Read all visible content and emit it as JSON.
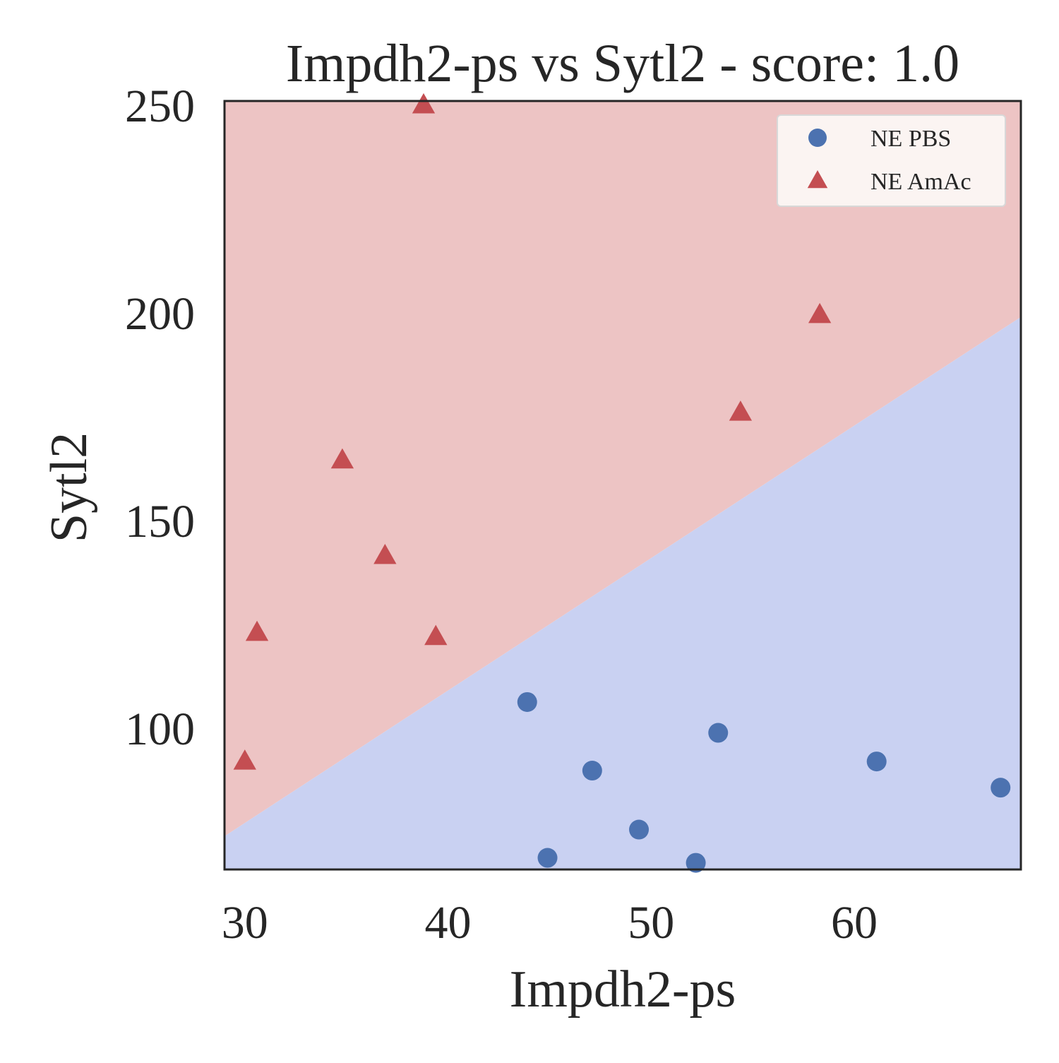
{
  "chart_data": {
    "type": "scatter",
    "title": "Impdh2-ps vs Sytl2 - score: 1.0",
    "xlabel": "Impdh2-ps",
    "ylabel": "Sytl2",
    "xlim": [
      29,
      68.2
    ],
    "ylim": [
      66,
      251
    ],
    "xticks": [
      30,
      40,
      50,
      60
    ],
    "yticks": [
      100,
      150,
      200,
      250
    ],
    "grid": false,
    "legend_position": "top-right",
    "decision_boundary": {
      "line": [
        [
          29,
          74
        ],
        [
          68.2,
          199
        ]
      ],
      "region_above_color": "#edc4c4",
      "region_below_color": "#c9d1f2",
      "above_series": "NE AmAc",
      "below_series": "NE PBS"
    },
    "series": [
      {
        "name": "NE PBS",
        "marker": "circle",
        "color": "#4c72b0",
        "points": [
          {
            "x": 43.9,
            "y": 106.3
          },
          {
            "x": 47.1,
            "y": 89.8
          },
          {
            "x": 44.9,
            "y": 68.8
          },
          {
            "x": 49.4,
            "y": 75.6
          },
          {
            "x": 52.2,
            "y": 67.6
          },
          {
            "x": 53.3,
            "y": 98.9
          },
          {
            "x": 61.1,
            "y": 92.0
          },
          {
            "x": 67.2,
            "y": 85.7
          }
        ]
      },
      {
        "name": "NE AmAc",
        "marker": "triangle",
        "color": "#c44e52",
        "points": [
          {
            "x": 30.0,
            "y": 92.0
          },
          {
            "x": 30.6,
            "y": 123.0
          },
          {
            "x": 34.8,
            "y": 164.5
          },
          {
            "x": 36.9,
            "y": 141.5
          },
          {
            "x": 38.8,
            "y": 250.0
          },
          {
            "x": 39.4,
            "y": 122.0
          },
          {
            "x": 54.4,
            "y": 176.0
          },
          {
            "x": 58.3,
            "y": 199.5
          }
        ]
      }
    ]
  }
}
